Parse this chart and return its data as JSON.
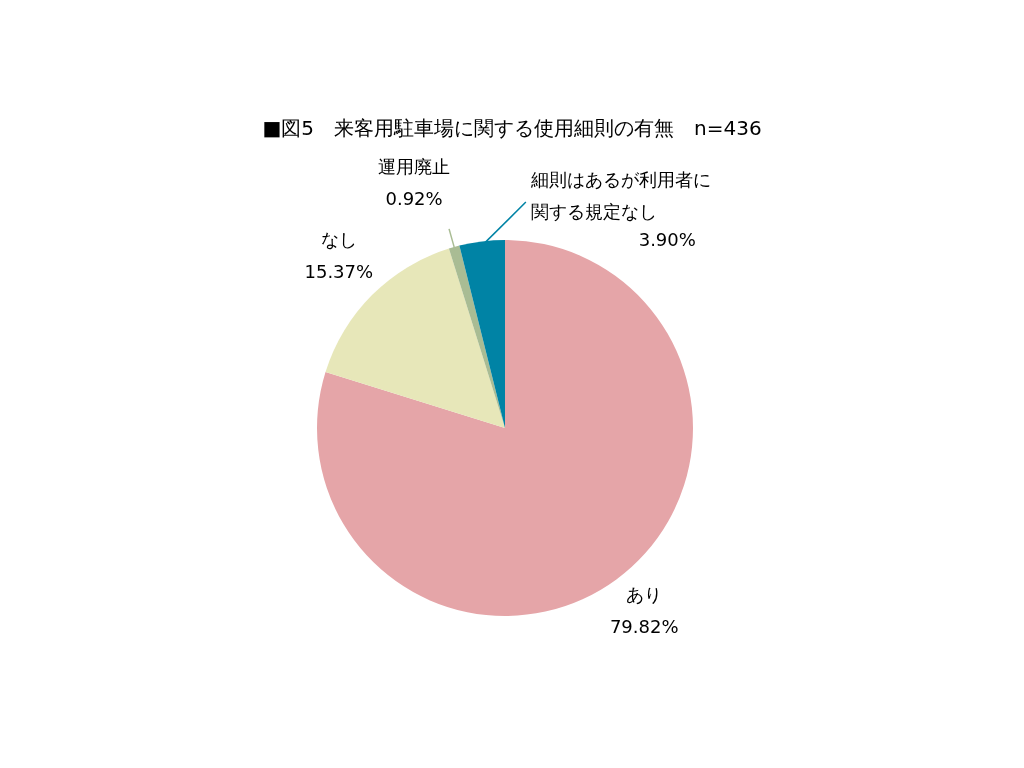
{
  "chart_data": {
    "type": "pie",
    "title": "■図5　来客用駐車場に関する使用細則の有無　n=436",
    "categories": [
      "あり",
      "なし",
      "運用廃止",
      "細則はあるが利用者に関する規定なし"
    ],
    "values": [
      79.82,
      15.37,
      0.92,
      3.9
    ],
    "value_labels": [
      "79.82%",
      "15.37%",
      "0.92%",
      "3.90%"
    ],
    "colors": [
      "#e5a5a8",
      "#e7e7b9",
      "#a9bc94",
      "#0083a5"
    ],
    "legend": false
  }
}
